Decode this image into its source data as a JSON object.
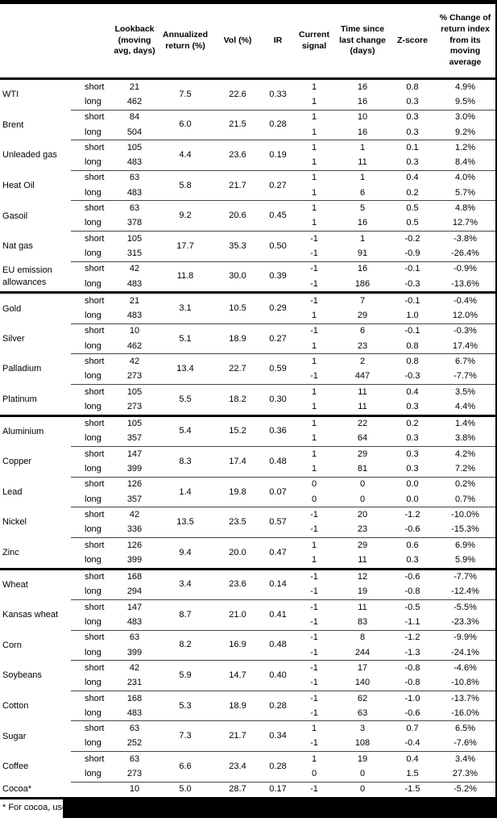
{
  "table": {
    "column_headers": {
      "lookback": "Lookback (moving avg, days)",
      "annualized_return": "Annualized return (%)",
      "vol": "Vol (%)",
      "ir": "IR",
      "current_signal": "Current signal",
      "time_since": "Time since last change (days)",
      "zscore": "Z-score",
      "pct_change": "% Change of return index from its moving average"
    },
    "sections": [
      {
        "commodities": [
          {
            "name": "WTI",
            "annualized_return": "7.5",
            "vol": "22.6",
            "ir": "0.33",
            "rows": [
              {
                "leg": "short",
                "lookback": "21",
                "signal": "1",
                "days": "16",
                "zscore": "0.8",
                "pct_change": "4.9%"
              },
              {
                "leg": "long",
                "lookback": "462",
                "signal": "1",
                "days": "16",
                "zscore": "0.3",
                "pct_change": "9.5%"
              }
            ]
          },
          {
            "name": "Brent",
            "annualized_return": "6.0",
            "vol": "21.5",
            "ir": "0.28",
            "rows": [
              {
                "leg": "short",
                "lookback": "84",
                "signal": "1",
                "days": "10",
                "zscore": "0.3",
                "pct_change": "3.0%"
              },
              {
                "leg": "long",
                "lookback": "504",
                "signal": "1",
                "days": "16",
                "zscore": "0.3",
                "pct_change": "9.2%"
              }
            ]
          },
          {
            "name": "Unleaded gas",
            "annualized_return": "4.4",
            "vol": "23.6",
            "ir": "0.19",
            "rows": [
              {
                "leg": "short",
                "lookback": "105",
                "signal": "1",
                "days": "1",
                "zscore": "0.1",
                "pct_change": "1.2%"
              },
              {
                "leg": "long",
                "lookback": "483",
                "signal": "1",
                "days": "11",
                "zscore": "0.3",
                "pct_change": "8.4%"
              }
            ]
          },
          {
            "name": "Heat Oil",
            "annualized_return": "5.8",
            "vol": "21.7",
            "ir": "0.27",
            "rows": [
              {
                "leg": "short",
                "lookback": "63",
                "signal": "1",
                "days": "1",
                "zscore": "0.4",
                "pct_change": "4.0%"
              },
              {
                "leg": "long",
                "lookback": "483",
                "signal": "1",
                "days": "6",
                "zscore": "0.2",
                "pct_change": "5.7%"
              }
            ]
          },
          {
            "name": "Gasoil",
            "annualized_return": "9.2",
            "vol": "20.6",
            "ir": "0.45",
            "rows": [
              {
                "leg": "short",
                "lookback": "63",
                "signal": "1",
                "days": "5",
                "zscore": "0.5",
                "pct_change": "4.8%"
              },
              {
                "leg": "long",
                "lookback": "378",
                "signal": "1",
                "days": "16",
                "zscore": "0.5",
                "pct_change": "12.7%"
              }
            ]
          },
          {
            "name": "Nat gas",
            "annualized_return": "17.7",
            "vol": "35.3",
            "ir": "0.50",
            "rows": [
              {
                "leg": "short",
                "lookback": "105",
                "signal": "-1",
                "days": "1",
                "zscore": "-0.2",
                "pct_change": "-3.8%"
              },
              {
                "leg": "long",
                "lookback": "315",
                "signal": "-1",
                "days": "91",
                "zscore": "-0.9",
                "pct_change": "-26.4%"
              }
            ]
          },
          {
            "name": "EU emission allowances",
            "annualized_return": "11.8",
            "vol": "30.0",
            "ir": "0.39",
            "rows": [
              {
                "leg": "short",
                "lookback": "42",
                "signal": "-1",
                "days": "16",
                "zscore": "-0.1",
                "pct_change": "-0.9%"
              },
              {
                "leg": "long",
                "lookback": "483",
                "signal": "-1",
                "days": "186",
                "zscore": "-0.3",
                "pct_change": "-13.6%"
              }
            ]
          }
        ]
      },
      {
        "commodities": [
          {
            "name": "Gold",
            "annualized_return": "3.1",
            "vol": "10.5",
            "ir": "0.29",
            "rows": [
              {
                "leg": "short",
                "lookback": "21",
                "signal": "-1",
                "days": "7",
                "zscore": "-0.1",
                "pct_change": "-0.4%"
              },
              {
                "leg": "long",
                "lookback": "483",
                "signal": "1",
                "days": "29",
                "zscore": "1.0",
                "pct_change": "12.0%"
              }
            ]
          },
          {
            "name": "Silver",
            "annualized_return": "5.1",
            "vol": "18.9",
            "ir": "0.27",
            "rows": [
              {
                "leg": "short",
                "lookback": "10",
                "signal": "-1",
                "days": "6",
                "zscore": "-0.1",
                "pct_change": "-0.3%"
              },
              {
                "leg": "long",
                "lookback": "462",
                "signal": "1",
                "days": "23",
                "zscore": "0.8",
                "pct_change": "17.4%"
              }
            ]
          },
          {
            "name": "Palladium",
            "annualized_return": "13.4",
            "vol": "22.7",
            "ir": "0.59",
            "rows": [
              {
                "leg": "short",
                "lookback": "42",
                "signal": "1",
                "days": "2",
                "zscore": "0.8",
                "pct_change": "6.7%"
              },
              {
                "leg": "long",
                "lookback": "273",
                "signal": "-1",
                "days": "447",
                "zscore": "-0.3",
                "pct_change": "-7.7%"
              }
            ]
          },
          {
            "name": "Platinum",
            "annualized_return": "5.5",
            "vol": "18.2",
            "ir": "0.30",
            "rows": [
              {
                "leg": "short",
                "lookback": "105",
                "signal": "1",
                "days": "11",
                "zscore": "0.4",
                "pct_change": "3.5%"
              },
              {
                "leg": "long",
                "lookback": "273",
                "signal": "1",
                "days": "11",
                "zscore": "0.3",
                "pct_change": "4.4%"
              }
            ]
          }
        ]
      },
      {
        "commodities": [
          {
            "name": "Aluminium",
            "annualized_return": "5.4",
            "vol": "15.2",
            "ir": "0.36",
            "rows": [
              {
                "leg": "short",
                "lookback": "105",
                "signal": "1",
                "days": "22",
                "zscore": "0.2",
                "pct_change": "1.4%"
              },
              {
                "leg": "long",
                "lookback": "357",
                "signal": "1",
                "days": "64",
                "zscore": "0.3",
                "pct_change": "3.8%"
              }
            ]
          },
          {
            "name": "Copper",
            "annualized_return": "8.3",
            "vol": "17.4",
            "ir": "0.48",
            "rows": [
              {
                "leg": "short",
                "lookback": "147",
                "signal": "1",
                "days": "29",
                "zscore": "0.3",
                "pct_change": "4.2%"
              },
              {
                "leg": "long",
                "lookback": "399",
                "signal": "1",
                "days": "81",
                "zscore": "0.3",
                "pct_change": "7.2%"
              }
            ]
          },
          {
            "name": "Lead",
            "annualized_return": "1.4",
            "vol": "19.8",
            "ir": "0.07",
            "rows": [
              {
                "leg": "short",
                "lookback": "126",
                "signal": "0",
                "days": "0",
                "zscore": "0.0",
                "pct_change": "0.2%"
              },
              {
                "leg": "long",
                "lookback": "357",
                "signal": "0",
                "days": "0",
                "zscore": "0.0",
                "pct_change": "0.7%"
              }
            ]
          },
          {
            "name": "Nickel",
            "annualized_return": "13.5",
            "vol": "23.5",
            "ir": "0.57",
            "rows": [
              {
                "leg": "short",
                "lookback": "42",
                "signal": "-1",
                "days": "20",
                "zscore": "-1.2",
                "pct_change": "-10.0%"
              },
              {
                "leg": "long",
                "lookback": "336",
                "signal": "-1",
                "days": "23",
                "zscore": "-0.6",
                "pct_change": "-15.3%"
              }
            ]
          },
          {
            "name": "Zinc",
            "annualized_return": "9.4",
            "vol": "20.0",
            "ir": "0.47",
            "rows": [
              {
                "leg": "short",
                "lookback": "126",
                "signal": "1",
                "days": "29",
                "zscore": "0.6",
                "pct_change": "6.9%"
              },
              {
                "leg": "long",
                "lookback": "399",
                "signal": "1",
                "days": "11",
                "zscore": "0.3",
                "pct_change": "5.9%"
              }
            ]
          }
        ]
      },
      {
        "commodities": [
          {
            "name": "Wheat",
            "annualized_return": "3.4",
            "vol": "23.6",
            "ir": "0.14",
            "rows": [
              {
                "leg": "short",
                "lookback": "168",
                "signal": "-1",
                "days": "12",
                "zscore": "-0.6",
                "pct_change": "-7.7%"
              },
              {
                "leg": "long",
                "lookback": "294",
                "signal": "-1",
                "days": "19",
                "zscore": "-0.8",
                "pct_change": "-12.4%"
              }
            ]
          },
          {
            "name": "Kansas wheat",
            "annualized_return": "8.7",
            "vol": "21.0",
            "ir": "0.41",
            "rows": [
              {
                "leg": "short",
                "lookback": "147",
                "signal": "-1",
                "days": "11",
                "zscore": "-0.5",
                "pct_change": "-5.5%"
              },
              {
                "leg": "long",
                "lookback": "483",
                "signal": "-1",
                "days": "83",
                "zscore": "-1.1",
                "pct_change": "-23.3%"
              }
            ]
          },
          {
            "name": "Corn",
            "annualized_return": "8.2",
            "vol": "16.9",
            "ir": "0.48",
            "rows": [
              {
                "leg": "short",
                "lookback": "63",
                "signal": "-1",
                "days": "8",
                "zscore": "-1.2",
                "pct_change": "-9.9%"
              },
              {
                "leg": "long",
                "lookback": "399",
                "signal": "-1",
                "days": "244",
                "zscore": "-1.3",
                "pct_change": "-24.1%"
              }
            ]
          },
          {
            "name": "Soybeans",
            "annualized_return": "5.9",
            "vol": "14.7",
            "ir": "0.40",
            "rows": [
              {
                "leg": "short",
                "lookback": "42",
                "signal": "-1",
                "days": "17",
                "zscore": "-0.8",
                "pct_change": "-4.6%"
              },
              {
                "leg": "long",
                "lookback": "231",
                "signal": "-1",
                "days": "140",
                "zscore": "-0.8",
                "pct_change": "-10.8%"
              }
            ]
          },
          {
            "name": "Cotton",
            "annualized_return": "5.3",
            "vol": "18.9",
            "ir": "0.28",
            "rows": [
              {
                "leg": "short",
                "lookback": "168",
                "signal": "-1",
                "days": "62",
                "zscore": "-1.0",
                "pct_change": "-13.7%"
              },
              {
                "leg": "long",
                "lookback": "483",
                "signal": "-1",
                "days": "63",
                "zscore": "-0.6",
                "pct_change": "-16.0%"
              }
            ]
          },
          {
            "name": "Sugar",
            "annualized_return": "7.3",
            "vol": "21.7",
            "ir": "0.34",
            "rows": [
              {
                "leg": "short",
                "lookback": "63",
                "signal": "1",
                "days": "3",
                "zscore": "0.7",
                "pct_change": "6.5%"
              },
              {
                "leg": "long",
                "lookback": "252",
                "signal": "-1",
                "days": "108",
                "zscore": "-0.4",
                "pct_change": "-7.6%"
              }
            ]
          },
          {
            "name": "Coffee",
            "annualized_return": "6.6",
            "vol": "23.4",
            "ir": "0.28",
            "rows": [
              {
                "leg": "short",
                "lookback": "63",
                "signal": "1",
                "days": "19",
                "zscore": "0.4",
                "pct_change": "3.4%"
              },
              {
                "leg": "long",
                "lookback": "273",
                "signal": "0",
                "days": "0",
                "zscore": "1.5",
                "pct_change": "27.3%"
              }
            ]
          },
          {
            "name": "Cocoa*",
            "annualized_return": "5.0",
            "vol": "28.7",
            "ir": "0.17",
            "rows": [
              {
                "leg": "",
                "lookback": "10",
                "signal": "-1",
                "days": "0",
                "zscore": "-1.5",
                "pct_change": "-5.2%"
              }
            ]
          }
        ]
      }
    ]
  },
  "footnote": "* For cocoa, uses c"
}
